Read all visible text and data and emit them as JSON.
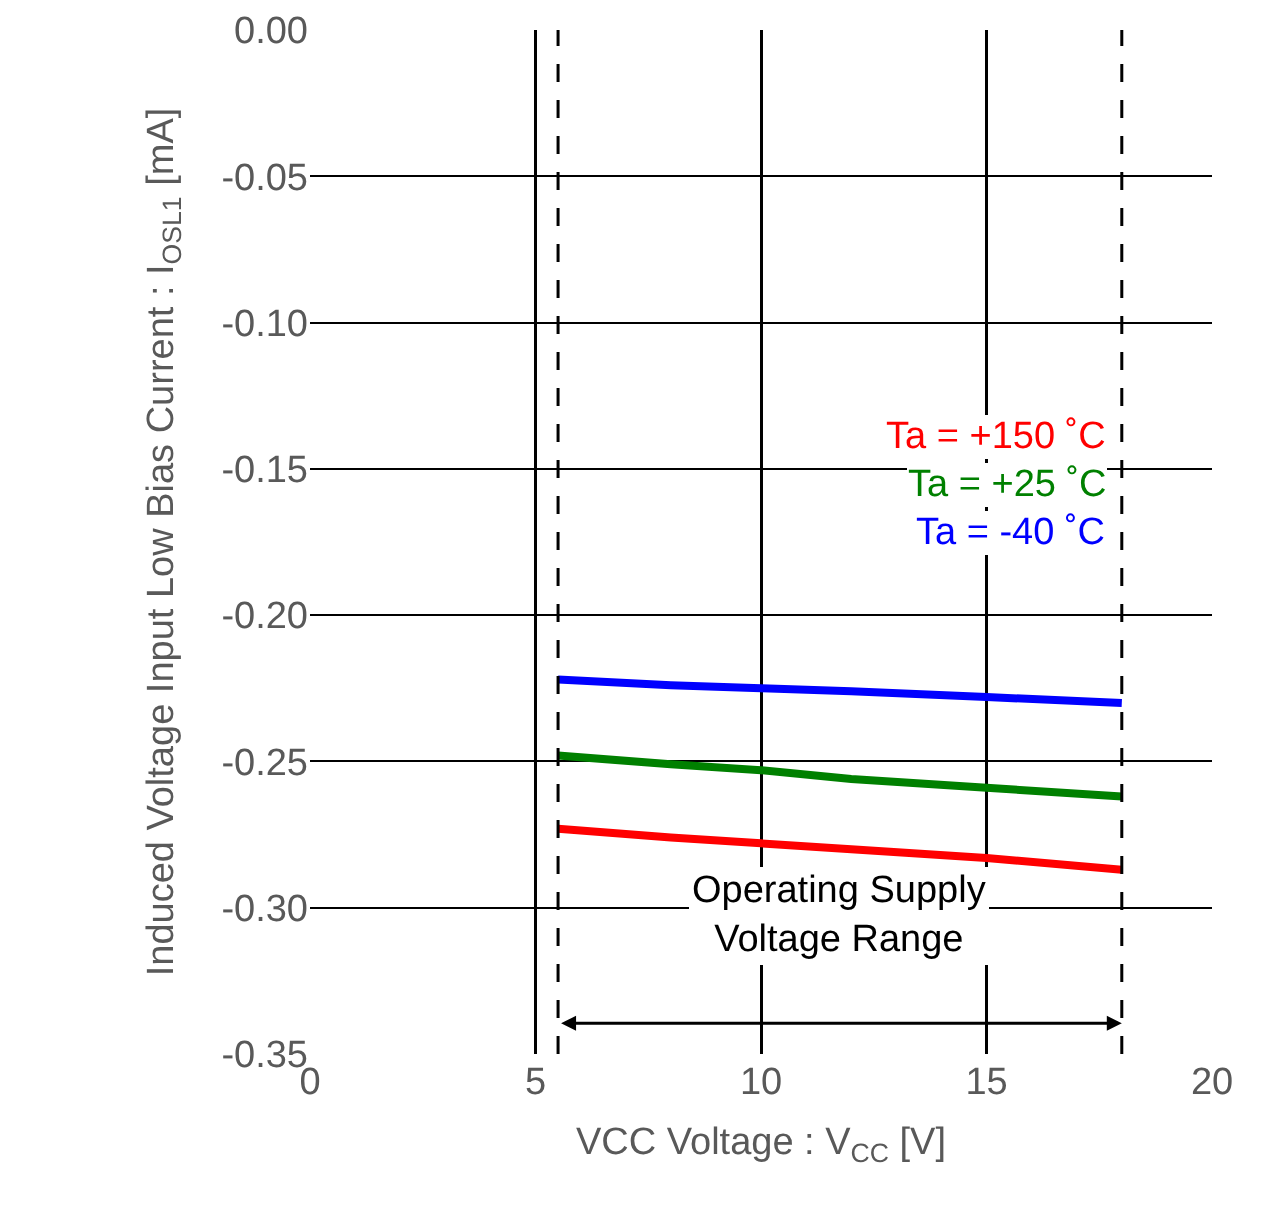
{
  "chart_data": {
    "type": "line",
    "xlabel": "VCC Voltage : V$_{CC}$ [V]",
    "ylabel": "Induced Voltage Input Low Bias Current : I$_{OSL1}$ [mA]",
    "xlim": [
      0,
      20
    ],
    "xticks": [
      0,
      5,
      10,
      15,
      20
    ],
    "ylim": [
      -0.35,
      0
    ],
    "yticks": [
      {
        "value": 0,
        "label": "0.00"
      },
      -0.05,
      {
        "value": -0.1,
        "label": "-0.10"
      },
      -0.15,
      {
        "value": -0.2,
        "label": "-0.20"
      },
      -0.25,
      {
        "value": -0.3,
        "label": "-0.30"
      },
      -0.35
    ],
    "grid": true,
    "legend": false,
    "marker": "none",
    "line_style": "solid",
    "series": [
      {
        "name": "Ta = +150 ˚C",
        "color": "#ff0000",
        "x": [
          5.5,
          8,
          10,
          12,
          15,
          18
        ],
        "values": [
          -0.273,
          -0.276,
          -0.278,
          -0.28,
          -0.283,
          -0.287
        ]
      },
      {
        "name": "Ta = +25 ˚C",
        "color": "#008000",
        "x": [
          5.5,
          8,
          10,
          12,
          15,
          18
        ],
        "values": [
          -0.248,
          -0.251,
          -0.253,
          -0.256,
          -0.259,
          -0.262
        ]
      },
      {
        "name": "Ta = -40 ˚C",
        "color": "#0000ff",
        "x": [
          5.5,
          8,
          10,
          12,
          15,
          18
        ],
        "values": [
          -0.222,
          -0.224,
          -0.225,
          -0.226,
          -0.228,
          -0.23
        ]
      }
    ],
    "ref_lines": [
      {
        "axis": "x",
        "value": 5.5,
        "color": "#000000",
        "line_style": "dashed"
      },
      {
        "axis": "x",
        "value": 18,
        "color": "#000000",
        "line_style": "dashed"
      }
    ],
    "annotations": [
      "Operating Supply Voltage Range"
    ]
  }
}
